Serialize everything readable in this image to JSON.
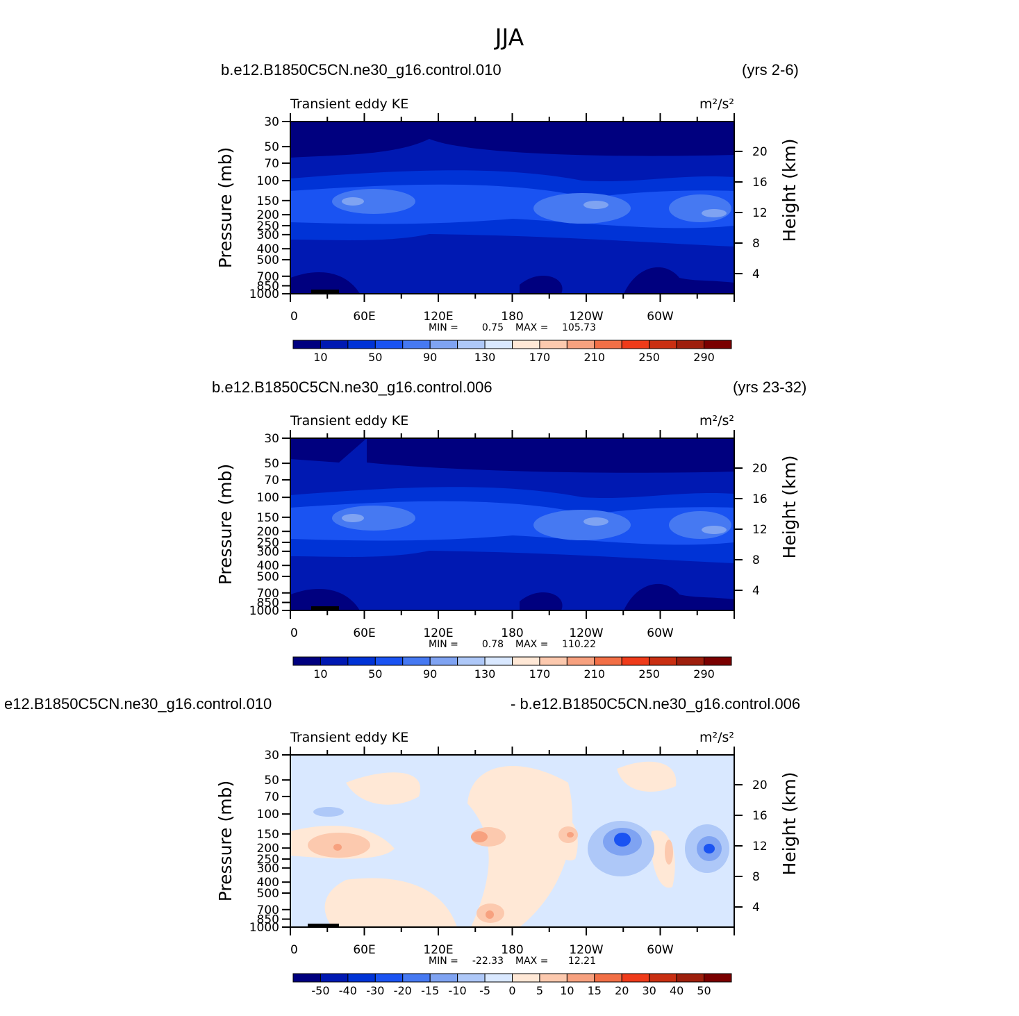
{
  "figure": {
    "title": "JJA",
    "colors": {
      "abs_scale": [
        "#00007f",
        "#0019b2",
        "#0033d6",
        "#1a53f2",
        "#4679f2",
        "#7fa3f2",
        "#aec8f8",
        "#d9e8ff",
        "#ffe8d6",
        "#fcc9ae",
        "#f7a17f",
        "#f26f46",
        "#ef3b1a",
        "#c92f12",
        "#9e1f0d",
        "#7a0000"
      ],
      "diff_scale": [
        "#00007f",
        "#0019b2",
        "#0033d6",
        "#1a53f2",
        "#4679f2",
        "#7fa3f2",
        "#aec8f8",
        "#d9e8ff",
        "#ffe8d6",
        "#fcc9ae",
        "#f7a17f",
        "#f26f46",
        "#ef3b1a",
        "#c92f12",
        "#9e1f0d",
        "#7a0000"
      ]
    }
  },
  "chart_data": [
    {
      "type": "heatmap",
      "case_left": "b.e12.B1850C5CN.ne30_g16.control.010",
      "case_right": "(yrs 2-6)",
      "variable": "Transient eddy KE",
      "units": "m²/s²",
      "ylabel_left": "Pressure (mb)",
      "ylabel_right": "Height (km)",
      "x_ticks": [
        "0",
        "60E",
        "120E",
        "180",
        "120W",
        "60W"
      ],
      "y_ticks_left": [
        "30",
        "50",
        "70",
        "100",
        "150",
        "200",
        "250",
        "300",
        "400",
        "500",
        "700",
        "850",
        "1000"
      ],
      "y_ticks_right": [
        "20",
        "16",
        "12",
        "8",
        "4"
      ],
      "min_label": "MIN =",
      "min_value": "0.75",
      "max_label": "MAX =",
      "max_value": "105.73",
      "colorbar_labels": [
        "10",
        "50",
        "90",
        "130",
        "170",
        "210",
        "250",
        "290"
      ]
    },
    {
      "type": "heatmap",
      "case_left": "b.e12.B1850C5CN.ne30_g16.control.006",
      "case_right": "(yrs 23-32)",
      "variable": "Transient eddy KE",
      "units": "m²/s²",
      "ylabel_left": "Pressure (mb)",
      "ylabel_right": "Height (km)",
      "x_ticks": [
        "0",
        "60E",
        "120E",
        "180",
        "120W",
        "60W"
      ],
      "y_ticks_left": [
        "30",
        "50",
        "70",
        "100",
        "150",
        "200",
        "250",
        "300",
        "400",
        "500",
        "700",
        "850",
        "1000"
      ],
      "y_ticks_right": [
        "20",
        "16",
        "12",
        "8",
        "4"
      ],
      "min_label": "MIN =",
      "min_value": "0.78",
      "max_label": "MAX =",
      "max_value": "110.22",
      "colorbar_labels": [
        "10",
        "50",
        "90",
        "130",
        "170",
        "210",
        "250",
        "290"
      ]
    },
    {
      "type": "heatmap",
      "case_left": "e12.B1850C5CN.ne30_g16.control.010",
      "case_right": "- b.e12.B1850C5CN.ne30_g16.control.006",
      "variable": "Transient eddy KE",
      "units": "m²/s²",
      "ylabel_left": "Pressure (mb)",
      "ylabel_right": "Height (km)",
      "x_ticks": [
        "0",
        "60E",
        "120E",
        "180",
        "120W",
        "60W"
      ],
      "y_ticks_left": [
        "30",
        "50",
        "70",
        "100",
        "150",
        "200",
        "250",
        "300",
        "400",
        "500",
        "700",
        "850",
        "1000"
      ],
      "y_ticks_right": [
        "20",
        "16",
        "12",
        "8",
        "4"
      ],
      "min_label": "MIN =",
      "min_value": "-22.33",
      "max_label": "MAX =",
      "max_value": "12.21",
      "colorbar_labels": [
        "-50",
        "-40",
        "-30",
        "-20",
        "-15",
        "-10",
        "-5",
        "0",
        "5",
        "10",
        "15",
        "20",
        "30",
        "40",
        "50"
      ]
    }
  ]
}
